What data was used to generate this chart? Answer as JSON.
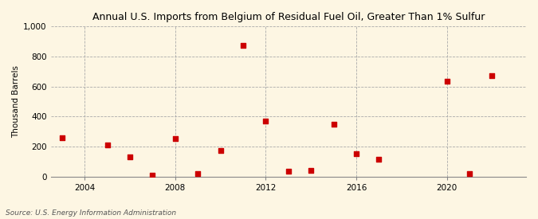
{
  "title": "Annual U.S. Imports from Belgium of Residual Fuel Oil, Greater Than 1% Sulfur",
  "ylabel": "Thousand Barrels",
  "source": "Source: U.S. Energy Information Administration",
  "years": [
    2003,
    2005,
    2006,
    2007,
    2008,
    2009,
    2010,
    2011,
    2012,
    2013,
    2014,
    2015,
    2016,
    2017,
    2020,
    2021,
    2022
  ],
  "values": [
    260,
    210,
    130,
    10,
    255,
    20,
    175,
    875,
    370,
    35,
    40,
    350,
    150,
    115,
    635,
    20,
    675
  ],
  "marker_color": "#cc0000",
  "marker_size": 25,
  "bg_color": "#fdf6e3",
  "grid_color": "#aaaaaa",
  "xlim": [
    2002.5,
    2023.5
  ],
  "ylim": [
    0,
    1000
  ],
  "yticks": [
    0,
    200,
    400,
    600,
    800,
    1000
  ],
  "ytick_labels": [
    "0",
    "200",
    "400",
    "600",
    "800",
    "1,000"
  ],
  "xticks": [
    2004,
    2008,
    2012,
    2016,
    2020
  ],
  "vgrid_positions": [
    2004,
    2008,
    2012,
    2016,
    2020
  ],
  "title_fontsize": 9,
  "label_fontsize": 7.5,
  "tick_fontsize": 7.5,
  "source_fontsize": 6.5
}
